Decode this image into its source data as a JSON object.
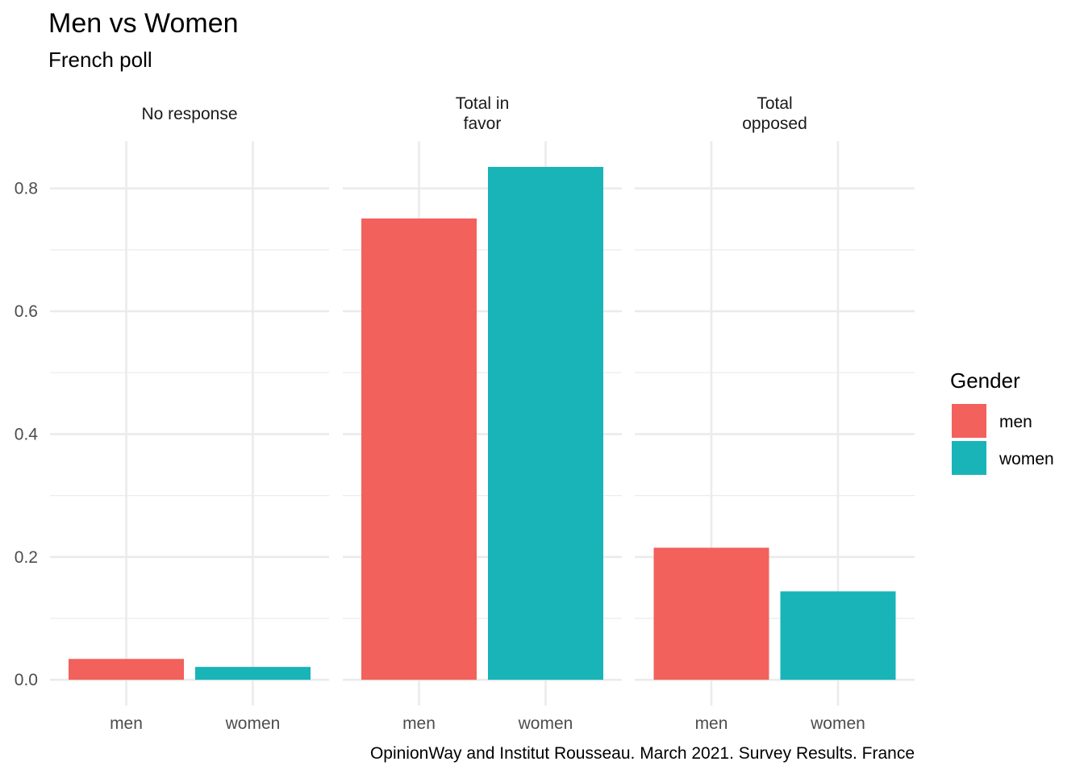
{
  "chart_data": {
    "type": "bar",
    "title": "Men vs Women",
    "subtitle": "French poll",
    "caption": "OpinionWay and Institut Rousseau. March 2021. Survey Results. France",
    "categories": [
      "men",
      "women"
    ],
    "panels": [
      {
        "label_lines": [
          "No response"
        ],
        "values": [
          0.034,
          0.021
        ]
      },
      {
        "label_lines": [
          "Total in",
          "favor"
        ],
        "values": [
          0.751,
          0.835
        ]
      },
      {
        "label_lines": [
          "Total",
          "opposed"
        ],
        "values": [
          0.215,
          0.144
        ]
      }
    ],
    "ylim": [
      -0.0418,
      0.877
    ],
    "yticks": [
      0.0,
      0.2,
      0.4,
      0.6,
      0.8
    ],
    "ytick_labels": [
      "0.0",
      "0.2",
      "0.4",
      "0.6",
      "0.8"
    ],
    "grid": true,
    "legend": {
      "title": "Gender",
      "placement": "right",
      "entries": [
        {
          "name": "men",
          "color": "#F2615C"
        },
        {
          "name": "women",
          "color": "#19B4B8"
        }
      ]
    }
  }
}
